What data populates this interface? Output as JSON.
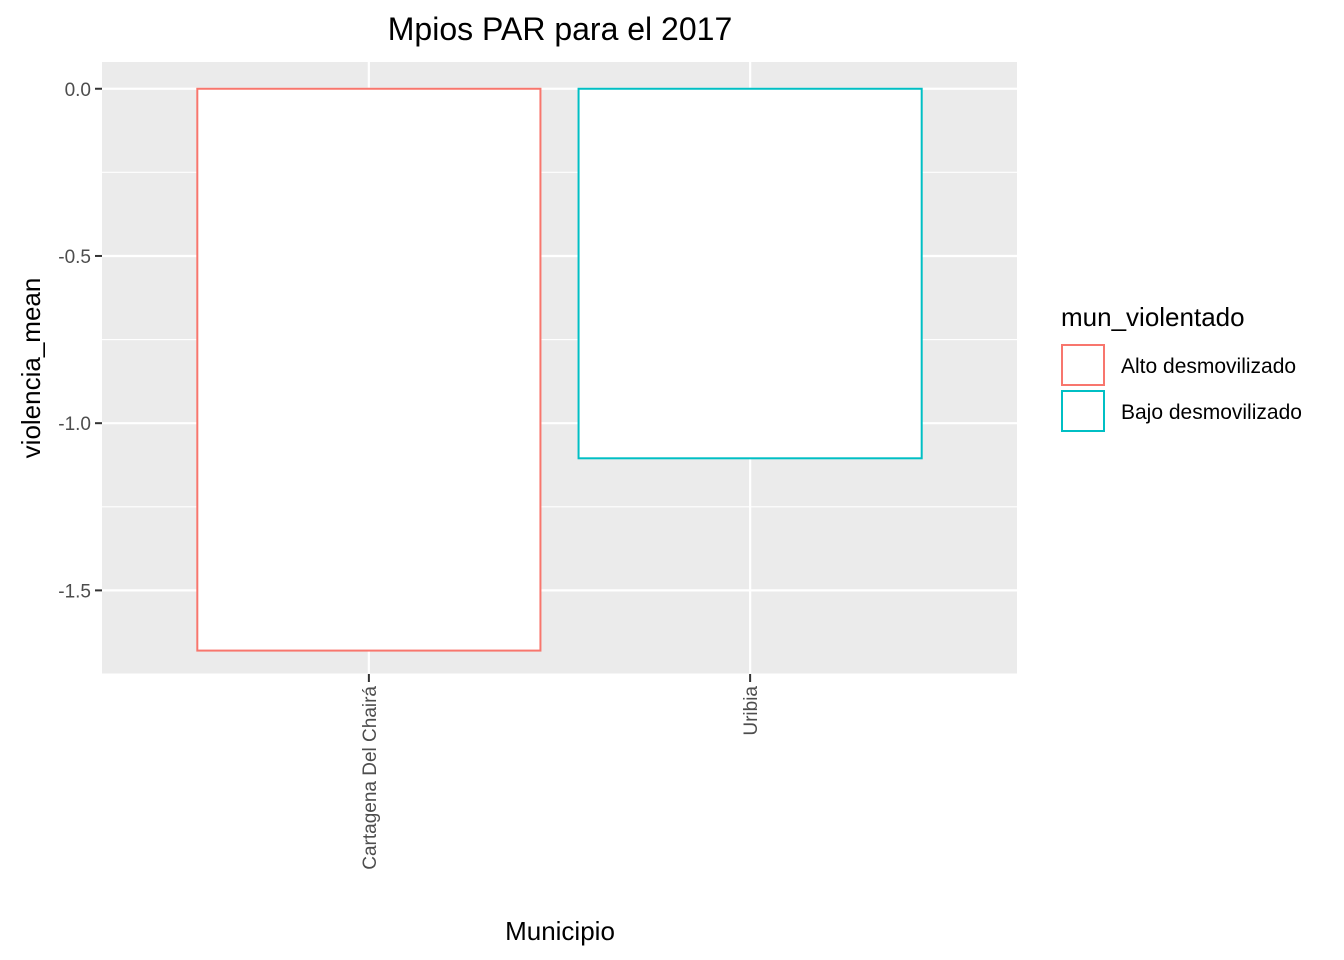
{
  "chart_data": {
    "type": "bar",
    "title": "Mpios PAR para el 2017",
    "xlabel": "Municipio",
    "ylabel": "violencia_mean",
    "categories": [
      "Cartagena Del Chairá",
      "Uribia"
    ],
    "values": [
      -1.68,
      -1.105
    ],
    "bar_groups": [
      "Alto desmovilizado",
      "Bajo desmovilizado"
    ],
    "ylim": [
      -1.75,
      0.08
    ],
    "yticks": [
      0.0,
      -0.5,
      -1.0,
      -1.5
    ],
    "ytick_labels": [
      "0.0",
      "-0.5",
      "-1.0",
      "-1.5"
    ],
    "grid": true,
    "legend": {
      "title": "mun_violentado",
      "placement": "right",
      "entries": [
        {
          "label": "Alto desmovilizado",
          "color": "#F8766D"
        },
        {
          "label": "Bajo desmovilizado",
          "color": "#00BFC4"
        }
      ]
    },
    "colors": {
      "panel_background": "#EBEBEB",
      "grid": "#FFFFFF",
      "bar_fill": "#FFFFFF",
      "tick": "#333333"
    }
  }
}
